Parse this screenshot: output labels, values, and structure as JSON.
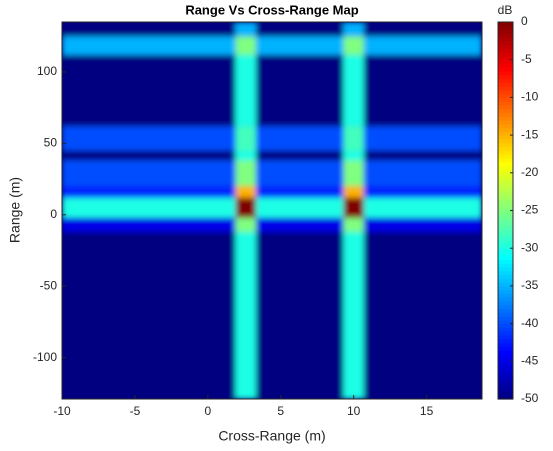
{
  "chart_data": {
    "type": "heatmap",
    "title": "Range Vs Cross-Range Map",
    "x_label": "Cross-Range (m)",
    "y_label": "Range (m)",
    "colorbar_label": "dB",
    "colormap": "jet",
    "clim": [
      -50,
      0
    ],
    "colorbar_ticks": [
      0,
      -5,
      -10,
      -15,
      -20,
      -25,
      -30,
      -35,
      -40,
      -45,
      -50
    ],
    "xlim": [
      -10,
      18.8
    ],
    "ylim": [
      -129,
      135
    ],
    "xticks": [
      -10,
      -5,
      0,
      5,
      10,
      15
    ],
    "yticks": [
      -100,
      -50,
      0,
      50,
      100
    ],
    "xbins": [
      -10,
      1.9,
      3.3,
      9.3,
      10.7,
      18.8
    ],
    "ybins": [
      -129,
      -12,
      -2,
      12,
      20,
      38,
      45,
      62,
      112,
      125,
      135
    ],
    "z": [
      [
        -50,
        -30,
        -50,
        -30,
        -50
      ],
      [
        -45,
        -25,
        -45,
        -25,
        -45
      ],
      [
        -30,
        0,
        -30,
        0,
        -30
      ],
      [
        -42,
        -15,
        -42,
        -15,
        -42
      ],
      [
        -40,
        -25,
        -40,
        -25,
        -40
      ],
      [
        -50,
        -30,
        -50,
        -30,
        -50
      ],
      [
        -40,
        -28,
        -40,
        -28,
        -40
      ],
      [
        -50,
        -30,
        -50,
        -30,
        -50
      ],
      [
        -35,
        -25,
        -35,
        -25,
        -35
      ],
      [
        -50,
        -35,
        -50,
        -35,
        -50
      ]
    ]
  }
}
